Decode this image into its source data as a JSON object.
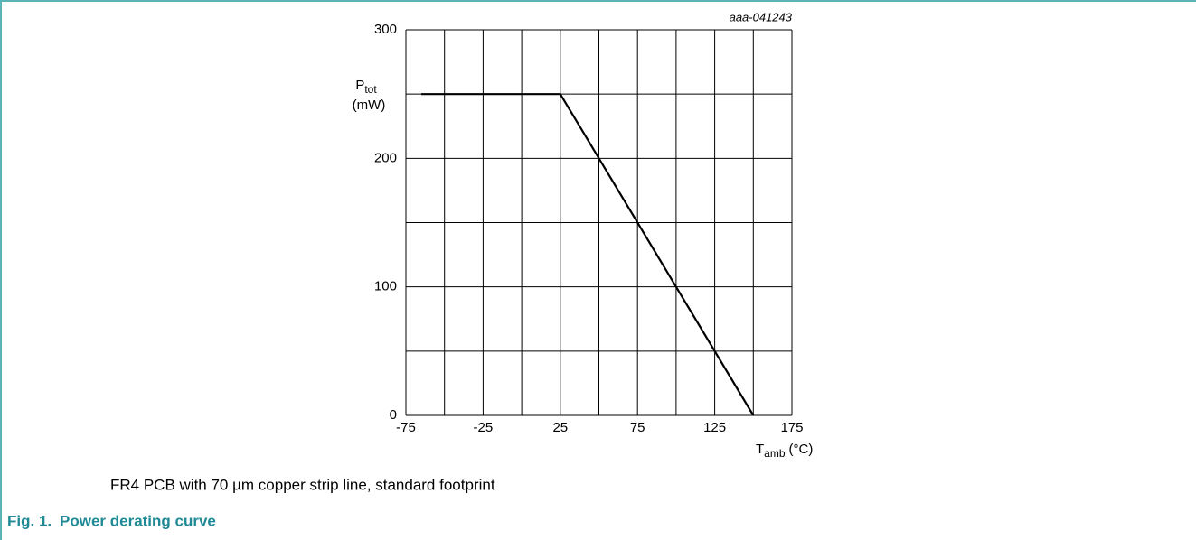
{
  "chart_data": {
    "type": "line",
    "annotation": "aaa-041243",
    "ylabel": {
      "main": "P",
      "sub": "tot",
      "unit": "(mW)"
    },
    "xlabel": {
      "main": "T",
      "sub": "amb",
      "unit": "(°C)"
    },
    "x": [
      -65,
      25,
      150
    ],
    "values": [
      250,
      250,
      0
    ],
    "color": "#000000",
    "xlim": [
      -75,
      175
    ],
    "xticks": [
      -75,
      -25,
      25,
      75,
      125,
      175
    ],
    "xminor": [
      -50,
      0,
      50,
      100,
      150
    ],
    "ylim": [
      0,
      300
    ],
    "yticks": [
      0,
      100,
      200,
      300
    ],
    "yminor": [
      50,
      150,
      250
    ],
    "grid": true
  },
  "caption": "FR4 PCB with 70 µm copper strip line, standard footprint",
  "figure": {
    "number": "Fig. 1.",
    "title": "Power derating curve"
  }
}
